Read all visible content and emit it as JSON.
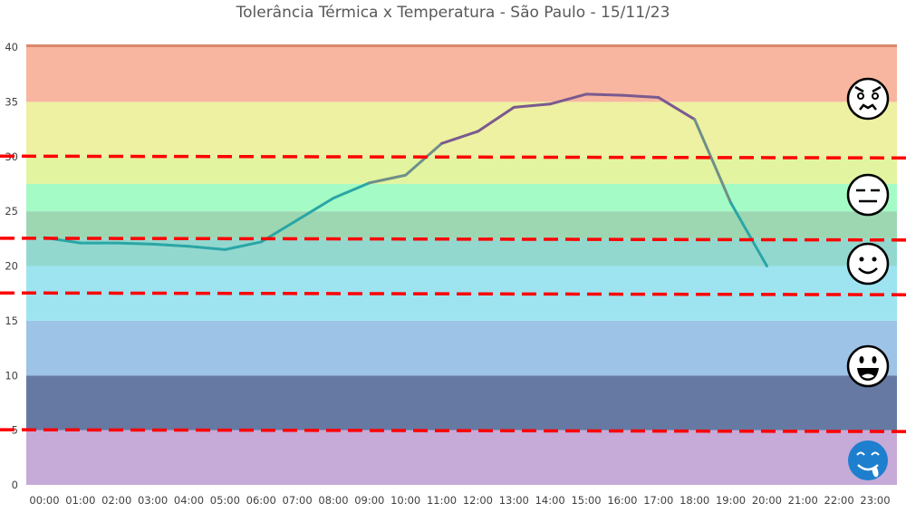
{
  "chart_data": {
    "type": "line",
    "title": "Tolerância Térmica x Temperatura - São Paulo - 15/11/23",
    "xlabel": "",
    "ylabel": "",
    "ylim": [
      0,
      40
    ],
    "yticks": [
      "0",
      "5",
      "10",
      "15",
      "20",
      "25",
      "30",
      "35",
      "40"
    ],
    "categories": [
      "00:00",
      "01:00",
      "02:00",
      "03:00",
      "04:00",
      "05:00",
      "06:00",
      "07:00",
      "08:00",
      "09:00",
      "10:00",
      "11:00",
      "12:00",
      "13:00",
      "14:00",
      "15:00",
      "16:00",
      "17:00",
      "18:00",
      "19:00",
      "20:00",
      "21:00",
      "22:00",
      "23:00"
    ],
    "series": [
      {
        "values": [
          22.6,
          22.1,
          22.1,
          22.0,
          21.8,
          21.5,
          22.2,
          24.2,
          26.2,
          27.6,
          28.3,
          31.2,
          32.3,
          34.5,
          34.8,
          35.7,
          35.6,
          35.4,
          33.4,
          25.8,
          20.0,
          null,
          null,
          null
        ]
      }
    ],
    "bands": [
      {
        "from": 0,
        "to": 5,
        "color": "#c6aad8"
      },
      {
        "from": 5,
        "to": 10,
        "color": "#6579a3"
      },
      {
        "from": 10,
        "to": 15,
        "color": "#9dc3e6"
      },
      {
        "from": 15,
        "to": 20,
        "color": "#9de4f0"
      },
      {
        "from": 20,
        "to": 22.5,
        "color": "#93d8cf"
      },
      {
        "from": 22.5,
        "to": 25,
        "color": "#9cd7b2"
      },
      {
        "from": 25,
        "to": 27.5,
        "color": "#a5fbc5"
      },
      {
        "from": 27.5,
        "to": 30,
        "color": "#e2f4a0"
      },
      {
        "from": 30,
        "to": 35,
        "color": "#eef0a2"
      },
      {
        "from": 35,
        "to": 40,
        "color": "#f8b5a0"
      },
      {
        "from": 40,
        "to": 45,
        "color": "#db876c"
      }
    ],
    "thresholds": [
      5,
      17.5,
      22.5,
      30
    ],
    "threshold_color": "#ff0000",
    "line_colors": {
      "cool": "#2aa6a6",
      "warm": "#7a5a8f"
    },
    "grid": false,
    "legend": "none",
    "face_icons": [
      "angry-face-icon",
      "neutral-face-icon",
      "smiling-face-icon",
      "grinning-face-icon",
      "cold-face-icon"
    ]
  }
}
